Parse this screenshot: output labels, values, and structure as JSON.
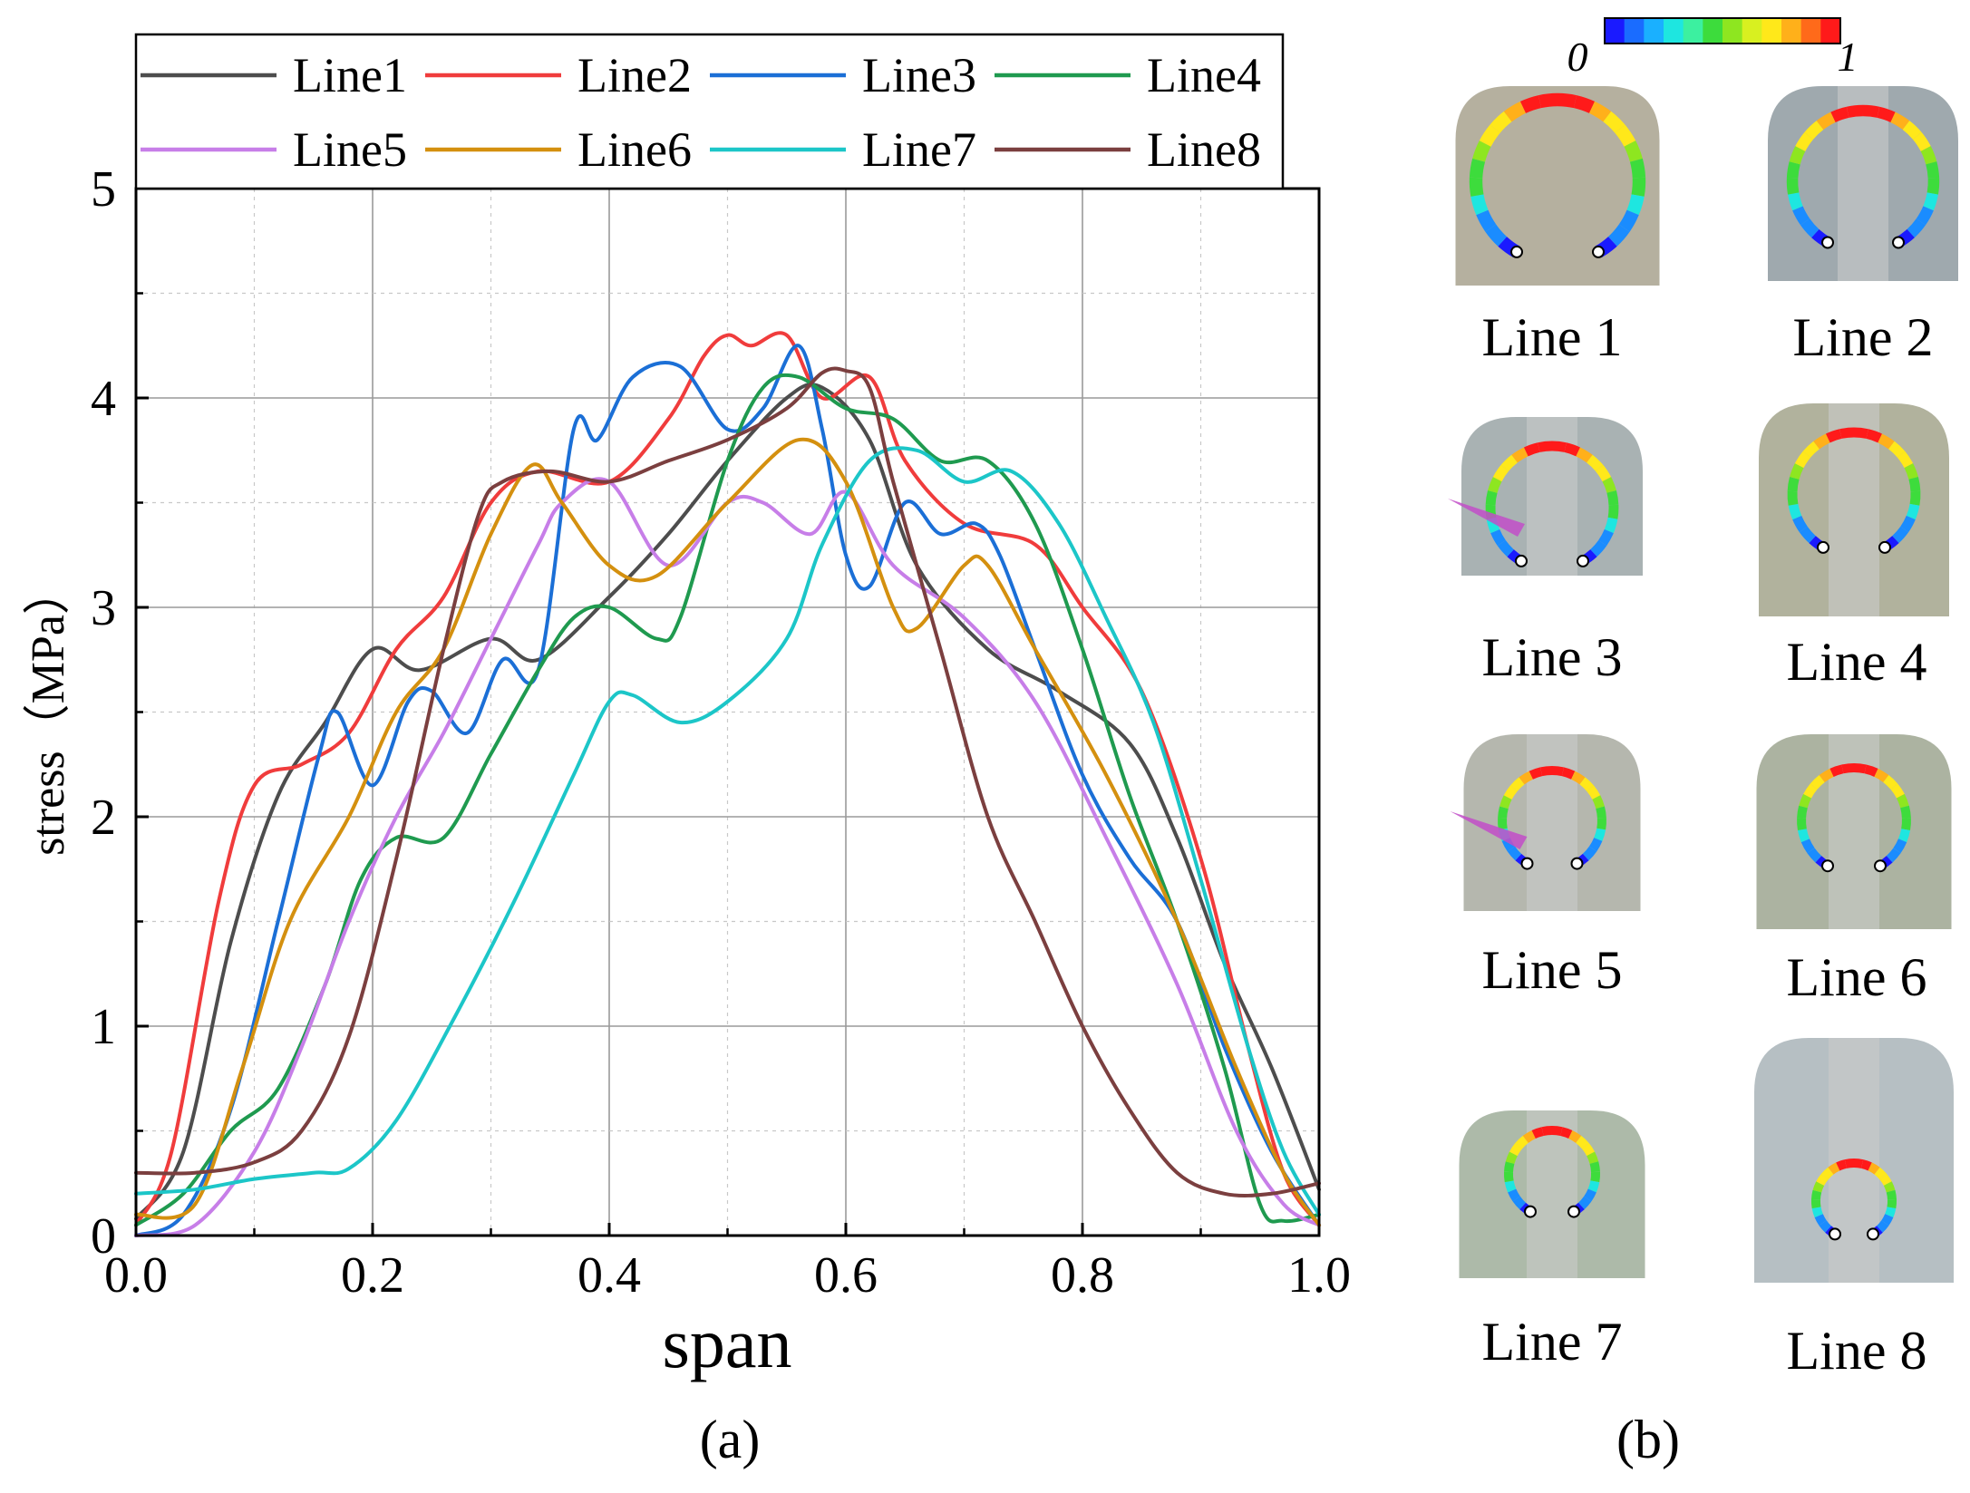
{
  "chart_data": {
    "type": "line",
    "title": "",
    "xlabel": "span",
    "ylabel": "stress（MPa）",
    "xlim": [
      0.0,
      1.0
    ],
    "ylim": [
      0,
      5
    ],
    "x_ticks": [
      "0.0",
      "0.2",
      "0.4",
      "0.6",
      "0.8",
      "1.0"
    ],
    "y_ticks": [
      "0",
      "1",
      "2",
      "3",
      "4",
      "5"
    ],
    "grid": true,
    "legend_position": "top",
    "series": [
      {
        "name": "Line1",
        "color": "#4d4d4d",
        "points": [
          [
            0.0,
            0.08
          ],
          [
            0.04,
            0.4
          ],
          [
            0.08,
            1.4
          ],
          [
            0.12,
            2.1
          ],
          [
            0.16,
            2.45
          ],
          [
            0.2,
            2.8
          ],
          [
            0.24,
            2.7
          ],
          [
            0.3,
            2.85
          ],
          [
            0.34,
            2.75
          ],
          [
            0.4,
            3.05
          ],
          [
            0.45,
            3.35
          ],
          [
            0.5,
            3.7
          ],
          [
            0.55,
            4.0
          ],
          [
            0.58,
            4.05
          ],
          [
            0.62,
            3.8
          ],
          [
            0.66,
            3.2
          ],
          [
            0.72,
            2.8
          ],
          [
            0.78,
            2.6
          ],
          [
            0.84,
            2.35
          ],
          [
            0.88,
            1.9
          ],
          [
            0.92,
            1.3
          ],
          [
            0.96,
            0.8
          ],
          [
            1.0,
            0.22
          ]
        ]
      },
      {
        "name": "Line2",
        "color": "#f03c3c",
        "points": [
          [
            0.0,
            0.05
          ],
          [
            0.03,
            0.4
          ],
          [
            0.07,
            1.6
          ],
          [
            0.1,
            2.15
          ],
          [
            0.14,
            2.25
          ],
          [
            0.18,
            2.4
          ],
          [
            0.22,
            2.8
          ],
          [
            0.26,
            3.05
          ],
          [
            0.3,
            3.5
          ],
          [
            0.34,
            3.65
          ],
          [
            0.4,
            3.6
          ],
          [
            0.45,
            3.9
          ],
          [
            0.48,
            4.2
          ],
          [
            0.5,
            4.3
          ],
          [
            0.52,
            4.25
          ],
          [
            0.55,
            4.3
          ],
          [
            0.58,
            4.0
          ],
          [
            0.62,
            4.1
          ],
          [
            0.65,
            3.7
          ],
          [
            0.7,
            3.4
          ],
          [
            0.76,
            3.3
          ],
          [
            0.8,
            3.0
          ],
          [
            0.85,
            2.6
          ],
          [
            0.9,
            1.8
          ],
          [
            0.94,
            0.9
          ],
          [
            0.97,
            0.3
          ],
          [
            1.0,
            0.05
          ]
        ]
      },
      {
        "name": "Line3",
        "color": "#1b6fd6",
        "points": [
          [
            0.0,
            0.0
          ],
          [
            0.04,
            0.1
          ],
          [
            0.08,
            0.6
          ],
          [
            0.12,
            1.5
          ],
          [
            0.155,
            2.3
          ],
          [
            0.17,
            2.5
          ],
          [
            0.2,
            2.15
          ],
          [
            0.23,
            2.55
          ],
          [
            0.25,
            2.6
          ],
          [
            0.28,
            2.4
          ],
          [
            0.31,
            2.75
          ],
          [
            0.34,
            2.7
          ],
          [
            0.37,
            3.85
          ],
          [
            0.39,
            3.8
          ],
          [
            0.42,
            4.1
          ],
          [
            0.46,
            4.15
          ],
          [
            0.5,
            3.85
          ],
          [
            0.53,
            3.95
          ],
          [
            0.56,
            4.25
          ],
          [
            0.58,
            3.85
          ],
          [
            0.6,
            3.25
          ],
          [
            0.62,
            3.1
          ],
          [
            0.65,
            3.5
          ],
          [
            0.68,
            3.35
          ],
          [
            0.71,
            3.4
          ],
          [
            0.73,
            3.25
          ],
          [
            0.76,
            2.8
          ],
          [
            0.8,
            2.2
          ],
          [
            0.84,
            1.8
          ],
          [
            0.88,
            1.5
          ],
          [
            0.92,
            0.9
          ],
          [
            0.96,
            0.4
          ],
          [
            1.0,
            0.05
          ]
        ]
      },
      {
        "name": "Line4",
        "color": "#1f9a4f",
        "points": [
          [
            0.0,
            0.05
          ],
          [
            0.04,
            0.2
          ],
          [
            0.08,
            0.5
          ],
          [
            0.12,
            0.7
          ],
          [
            0.16,
            1.2
          ],
          [
            0.19,
            1.7
          ],
          [
            0.22,
            1.9
          ],
          [
            0.26,
            1.9
          ],
          [
            0.3,
            2.3
          ],
          [
            0.34,
            2.7
          ],
          [
            0.37,
            2.95
          ],
          [
            0.4,
            3.0
          ],
          [
            0.44,
            2.85
          ],
          [
            0.46,
            2.95
          ],
          [
            0.5,
            3.7
          ],
          [
            0.53,
            4.05
          ],
          [
            0.56,
            4.1
          ],
          [
            0.6,
            3.95
          ],
          [
            0.64,
            3.9
          ],
          [
            0.68,
            3.7
          ],
          [
            0.72,
            3.7
          ],
          [
            0.76,
            3.4
          ],
          [
            0.8,
            2.8
          ],
          [
            0.84,
            2.1
          ],
          [
            0.88,
            1.5
          ],
          [
            0.92,
            0.8
          ],
          [
            0.95,
            0.15
          ],
          [
            0.97,
            0.07
          ],
          [
            1.0,
            0.1
          ]
        ]
      },
      {
        "name": "Line5",
        "color": "#c77ee8",
        "points": [
          [
            0.0,
            0.0
          ],
          [
            0.05,
            0.05
          ],
          [
            0.1,
            0.4
          ],
          [
            0.14,
            0.9
          ],
          [
            0.18,
            1.5
          ],
          [
            0.22,
            2.0
          ],
          [
            0.26,
            2.4
          ],
          [
            0.3,
            2.85
          ],
          [
            0.34,
            3.3
          ],
          [
            0.36,
            3.5
          ],
          [
            0.4,
            3.6
          ],
          [
            0.45,
            3.2
          ],
          [
            0.5,
            3.5
          ],
          [
            0.53,
            3.5
          ],
          [
            0.57,
            3.35
          ],
          [
            0.6,
            3.55
          ],
          [
            0.64,
            3.2
          ],
          [
            0.7,
            2.95
          ],
          [
            0.76,
            2.55
          ],
          [
            0.82,
            1.9
          ],
          [
            0.88,
            1.2
          ],
          [
            0.93,
            0.5
          ],
          [
            0.97,
            0.15
          ],
          [
            1.0,
            0.05
          ]
        ]
      },
      {
        "name": "Line6",
        "color": "#d4900f",
        "points": [
          [
            0.0,
            0.1
          ],
          [
            0.05,
            0.15
          ],
          [
            0.09,
            0.8
          ],
          [
            0.13,
            1.5
          ],
          [
            0.18,
            2.0
          ],
          [
            0.22,
            2.5
          ],
          [
            0.26,
            2.8
          ],
          [
            0.3,
            3.35
          ],
          [
            0.335,
            3.68
          ],
          [
            0.36,
            3.5
          ],
          [
            0.4,
            3.2
          ],
          [
            0.44,
            3.15
          ],
          [
            0.5,
            3.5
          ],
          [
            0.56,
            3.8
          ],
          [
            0.6,
            3.6
          ],
          [
            0.64,
            3.0
          ],
          [
            0.66,
            2.9
          ],
          [
            0.7,
            3.2
          ],
          [
            0.72,
            3.2
          ],
          [
            0.76,
            2.8
          ],
          [
            0.82,
            2.2
          ],
          [
            0.88,
            1.5
          ],
          [
            0.93,
            0.8
          ],
          [
            0.97,
            0.3
          ],
          [
            1.0,
            0.05
          ]
        ]
      },
      {
        "name": "Line7",
        "color": "#1cc6c8",
        "points": [
          [
            0.0,
            0.2
          ],
          [
            0.05,
            0.22
          ],
          [
            0.1,
            0.27
          ],
          [
            0.15,
            0.3
          ],
          [
            0.18,
            0.32
          ],
          [
            0.22,
            0.55
          ],
          [
            0.27,
            1.05
          ],
          [
            0.32,
            1.6
          ],
          [
            0.37,
            2.2
          ],
          [
            0.4,
            2.55
          ],
          [
            0.42,
            2.58
          ],
          [
            0.46,
            2.45
          ],
          [
            0.5,
            2.55
          ],
          [
            0.55,
            2.85
          ],
          [
            0.58,
            3.3
          ],
          [
            0.62,
            3.7
          ],
          [
            0.66,
            3.75
          ],
          [
            0.7,
            3.6
          ],
          [
            0.74,
            3.65
          ],
          [
            0.78,
            3.4
          ],
          [
            0.82,
            2.95
          ],
          [
            0.86,
            2.45
          ],
          [
            0.9,
            1.7
          ],
          [
            0.94,
            0.9
          ],
          [
            0.97,
            0.4
          ],
          [
            1.0,
            0.1
          ]
        ]
      },
      {
        "name": "Line8",
        "color": "#7b3f3f",
        "points": [
          [
            0.0,
            0.3
          ],
          [
            0.05,
            0.3
          ],
          [
            0.1,
            0.35
          ],
          [
            0.14,
            0.5
          ],
          [
            0.18,
            0.95
          ],
          [
            0.22,
            1.8
          ],
          [
            0.26,
            2.8
          ],
          [
            0.29,
            3.45
          ],
          [
            0.31,
            3.6
          ],
          [
            0.35,
            3.65
          ],
          [
            0.4,
            3.6
          ],
          [
            0.45,
            3.7
          ],
          [
            0.5,
            3.8
          ],
          [
            0.55,
            3.95
          ],
          [
            0.58,
            4.12
          ],
          [
            0.6,
            4.13
          ],
          [
            0.62,
            4.05
          ],
          [
            0.64,
            3.6
          ],
          [
            0.68,
            2.8
          ],
          [
            0.72,
            2.0
          ],
          [
            0.76,
            1.5
          ],
          [
            0.8,
            1.0
          ],
          [
            0.84,
            0.6
          ],
          [
            0.88,
            0.3
          ],
          [
            0.92,
            0.2
          ],
          [
            0.96,
            0.2
          ],
          [
            1.0,
            0.25
          ]
        ]
      }
    ]
  },
  "panel_labels": {
    "left": "(a)",
    "right": "(b)"
  },
  "colorbar": {
    "min_label": "0",
    "max_label": "1",
    "colors": [
      "#1a1aff",
      "#1a6cff",
      "#1ab0ff",
      "#1ee6e0",
      "#3cf0a0",
      "#3ddc3c",
      "#8ee620",
      "#d8f020",
      "#ffe81a",
      "#ffb01a",
      "#ff6a1a",
      "#ff1a1a"
    ]
  },
  "renders": [
    {
      "label": "Line 1"
    },
    {
      "label": "Line 2"
    },
    {
      "label": "Line 3"
    },
    {
      "label": "Line 4"
    },
    {
      "label": "Line 5"
    },
    {
      "label": "Line 6"
    },
    {
      "label": "Line 7"
    },
    {
      "label": "Line 8"
    }
  ]
}
